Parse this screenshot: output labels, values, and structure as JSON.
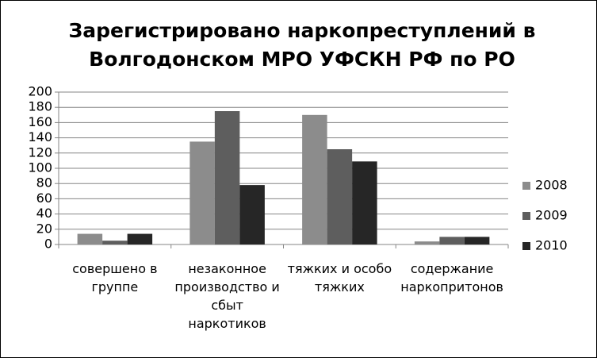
{
  "chart_data": {
    "type": "bar",
    "title": "Зарегистрировано наркопреступлений в Волгодонском МРО УФСКН РФ по РО",
    "categories": [
      "совершено в группе",
      "незаконное производство и сбыт наркотиков",
      "тяжких и особо тяжких",
      "содержание наркопритонов"
    ],
    "series": [
      {
        "name": "2008",
        "color": "#8c8c8c",
        "values": [
          14,
          135,
          170,
          4
        ]
      },
      {
        "name": "2009",
        "color": "#5e5e5e",
        "values": [
          5,
          175,
          125,
          10
        ]
      },
      {
        "name": "2010",
        "color": "#262626",
        "values": [
          14,
          78,
          109,
          10
        ]
      }
    ],
    "ylim": [
      0,
      200
    ],
    "yticks": [
      0,
      20,
      40,
      60,
      80,
      100,
      120,
      140,
      160,
      180,
      200
    ],
    "grid": true,
    "legend": "right"
  }
}
